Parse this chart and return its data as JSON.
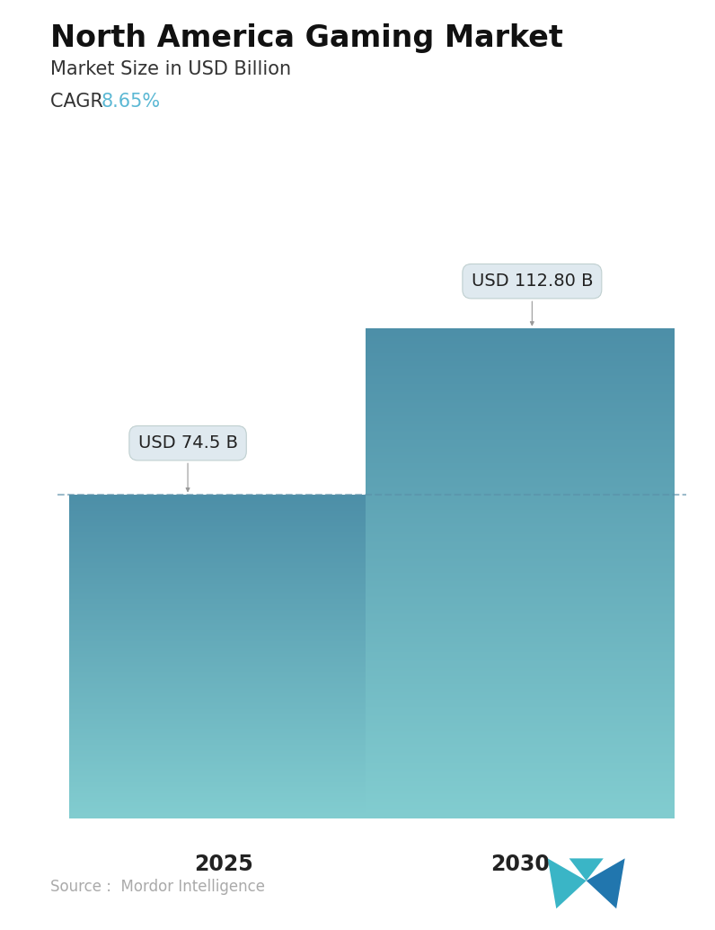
{
  "title": "North America Gaming Market",
  "subtitle": "Market Size in USD Billion",
  "cagr_label": "CAGR ",
  "cagr_value": "8.65%",
  "cagr_color": "#5bb8d4",
  "categories": [
    "2025",
    "2030"
  ],
  "values": [
    74.5,
    112.8
  ],
  "bar_labels": [
    "USD 74.5 B",
    "USD 112.80 B"
  ],
  "bar_top_color": "#4d8fa8",
  "bar_bottom_color": "#82cdd0",
  "dashed_line_color": "#5a8fa8",
  "dashed_line_value": 74.5,
  "background_color": "#ffffff",
  "source_text": "Source :  Mordor Intelligence",
  "source_color": "#aaaaaa",
  "title_fontsize": 24,
  "subtitle_fontsize": 15,
  "cagr_fontsize": 15,
  "bar_label_fontsize": 14,
  "xlabel_fontsize": 17,
  "source_fontsize": 12,
  "ylim": [
    0,
    135
  ],
  "bar_width": 0.52,
  "bar_positions": [
    0.28,
    0.78
  ]
}
